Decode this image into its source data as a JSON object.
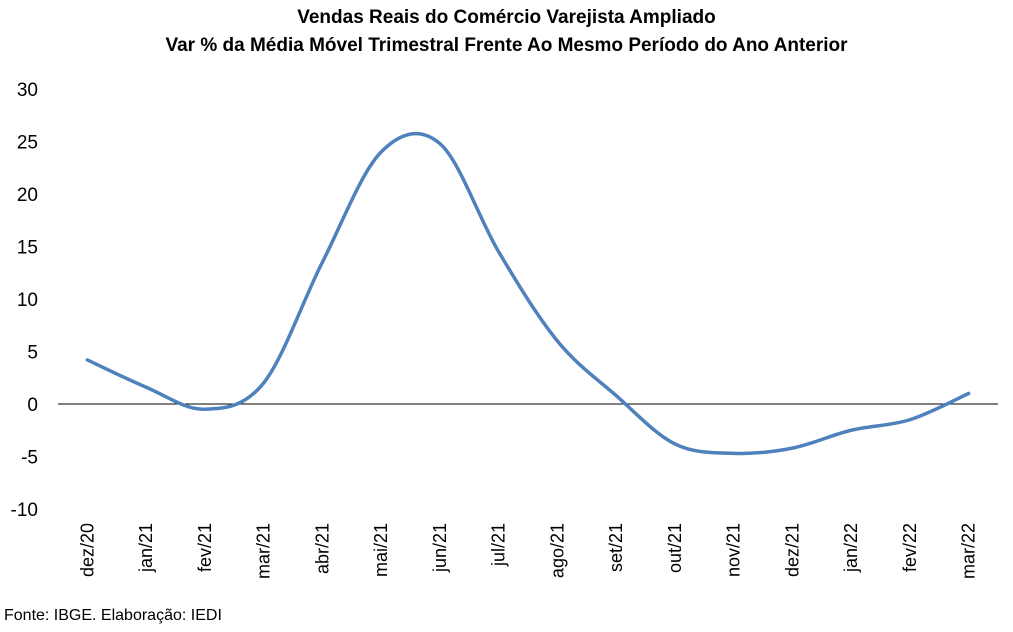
{
  "chart_data": {
    "type": "line",
    "title": "Vendas Reais do Comércio Varejista Ampliado",
    "subtitle": "Var % da Média Móvel Trimestral Frente Ao Mesmo Período do Ano Anterior",
    "xlabel": "",
    "ylabel": "",
    "ylim": [
      -10,
      30
    ],
    "yticks": [
      "30",
      "25",
      "20",
      "15",
      "10",
      "5",
      "0",
      "-5",
      "-10"
    ],
    "categories": [
      "dez/20",
      "jan/21",
      "fev/21",
      "mar/21",
      "abr/21",
      "mai/21",
      "jun/21",
      "jul/21",
      "ago/21",
      "set/21",
      "out/21",
      "nov/21",
      "dez/21",
      "jan/22",
      "fev/22",
      "mar/22"
    ],
    "series": [
      {
        "values": [
          4.2,
          1.6,
          -0.5,
          2.0,
          13.5,
          24.0,
          24.8,
          14.5,
          6.0,
          0.8,
          -3.8,
          -4.7,
          -4.2,
          -2.5,
          -1.5,
          1.0
        ]
      }
    ],
    "grid": false,
    "legend": "none",
    "line_color": "#4f81bd"
  },
  "source": "Fonte: IBGE. Elaboração: IEDI"
}
